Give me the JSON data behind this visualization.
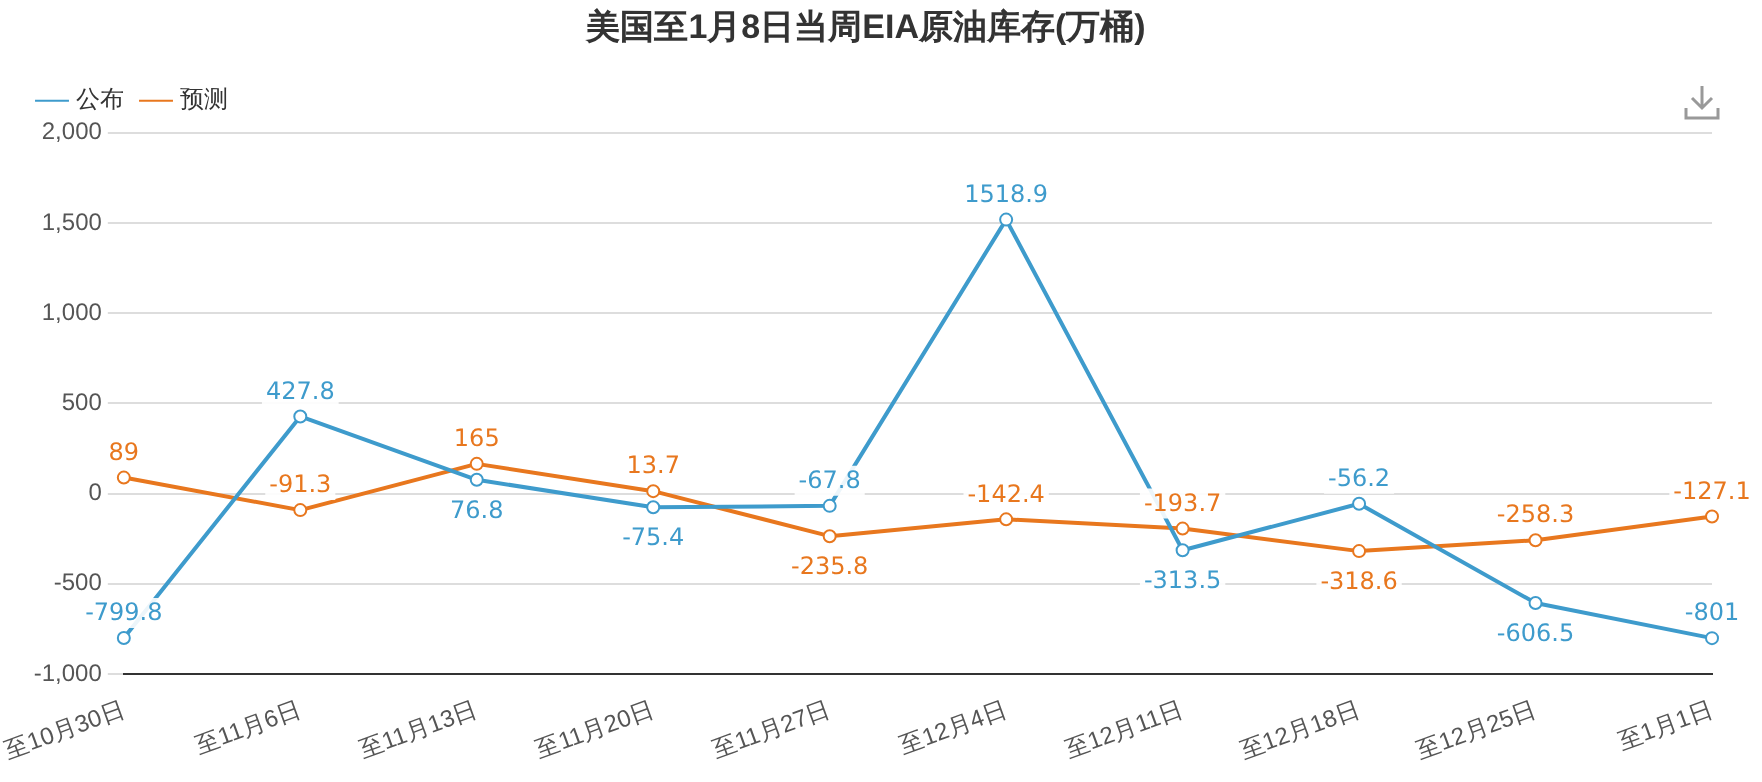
{
  "chart_data": {
    "type": "line",
    "title": "美国至1月8日当周EIA原油库存(万桶)",
    "categories": [
      "至10月30日",
      "至11月6日",
      "至11月13日",
      "至11月20日",
      "至11月27日",
      "至12月4日",
      "至12月11日",
      "至12月18日",
      "至12月25日",
      "至1月1日"
    ],
    "series": [
      {
        "name": "公布",
        "color": "#3e9bcc",
        "values": [
          -799.8,
          427.8,
          76.8,
          -75.4,
          -67.8,
          1518.9,
          -313.5,
          -56.2,
          -606.5,
          -801
        ]
      },
      {
        "name": "预测",
        "color": "#e8771e",
        "values": [
          89,
          -91.3,
          165,
          13.7,
          -235.8,
          -142.4,
          -193.7,
          -318.6,
          -258.3,
          -127.1
        ]
      }
    ],
    "ylim": [
      -1000,
      2000
    ],
    "yticks": [
      {
        "value": -1000,
        "label": "-1,000"
      },
      -500,
      0,
      500,
      {
        "value": 1000,
        "label": "1,000"
      },
      {
        "value": 1500,
        "label": "1,500"
      },
      {
        "value": 2000,
        "label": "2,000"
      }
    ],
    "grid": "y",
    "legend": "top left",
    "marker": "circle",
    "line_style": "solid",
    "data_labels": true
  }
}
